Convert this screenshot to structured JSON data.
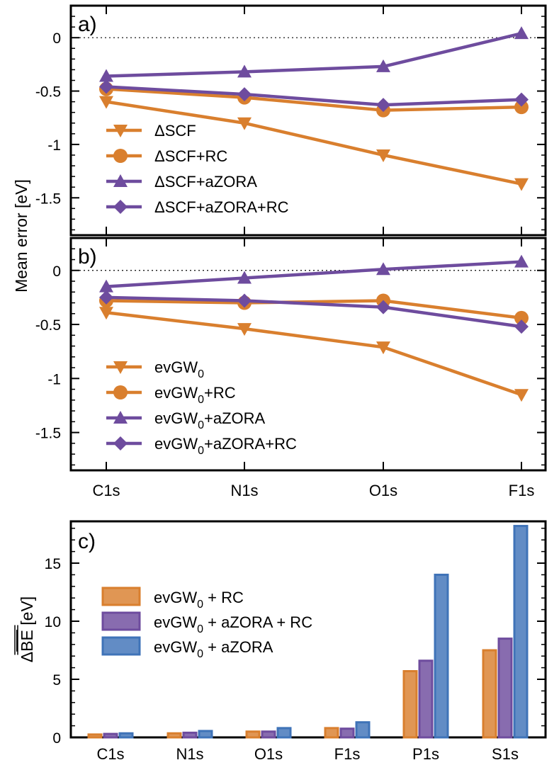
{
  "colors": {
    "orange": "#D97F2E",
    "purple": "#6E4C9E",
    "blue": "#3F73B8",
    "axis": "#000000",
    "zero_line": "#000000"
  },
  "shared_ylabel": "Mean error [eV]",
  "chart_data": [
    {
      "id": "a",
      "type": "line",
      "panel_label": "a)",
      "categories": [
        "C1s",
        "N1s",
        "O1s",
        "F1s"
      ],
      "show_category_labels": false,
      "ylim": [
        -1.85,
        0.3
      ],
      "yticks": [
        0,
        -0.5,
        -1,
        -1.5
      ],
      "ytick_labels": [
        "0",
        "-0.5",
        "-1",
        "-1.5"
      ],
      "zero_line": "dotted",
      "grid": false,
      "legend_position": "bottom-left",
      "series": [
        {
          "name": "ΔSCF",
          "marker": "triangle-down",
          "color": "orange",
          "values": [
            -0.6,
            -0.8,
            -1.1,
            -1.37
          ]
        },
        {
          "name": "ΔSCF+RC",
          "marker": "circle",
          "color": "orange",
          "values": [
            -0.48,
            -0.56,
            -0.68,
            -0.65
          ]
        },
        {
          "name": "ΔSCF+aZORA",
          "marker": "triangle-up",
          "color": "purple",
          "values": [
            -0.36,
            -0.32,
            -0.27,
            0.04
          ]
        },
        {
          "name": "ΔSCF+aZORA+RC",
          "marker": "diamond",
          "color": "purple",
          "values": [
            -0.46,
            -0.53,
            -0.63,
            -0.58
          ]
        }
      ]
    },
    {
      "id": "b",
      "type": "line",
      "panel_label": "b)",
      "categories": [
        "C1s",
        "N1s",
        "O1s",
        "F1s"
      ],
      "show_category_labels": true,
      "ylim": [
        -1.85,
        0.3
      ],
      "yticks": [
        0,
        -0.5,
        -1,
        -1.5
      ],
      "ytick_labels": [
        "0",
        "-0.5",
        "-1",
        "-1.5"
      ],
      "zero_line": "dotted",
      "grid": false,
      "legend_position": "bottom-left",
      "series": [
        {
          "name": "evGW0",
          "legend_base": "evGW",
          "legend_sub": "0",
          "legend_suffix": "",
          "marker": "triangle-down",
          "color": "orange",
          "values": [
            -0.39,
            -0.54,
            -0.71,
            -1.15
          ]
        },
        {
          "name": "evGW0+RC",
          "legend_base": "evGW",
          "legend_sub": "0",
          "legend_suffix": "+RC",
          "marker": "circle",
          "color": "orange",
          "values": [
            -0.28,
            -0.3,
            -0.28,
            -0.44
          ]
        },
        {
          "name": "evGW0+aZORA",
          "legend_base": "evGW",
          "legend_sub": "0",
          "legend_suffix": "+aZORA",
          "marker": "triangle-up",
          "color": "purple",
          "values": [
            -0.15,
            -0.07,
            0.01,
            0.08
          ]
        },
        {
          "name": "evGW0+aZORA+RC",
          "legend_base": "evGW",
          "legend_sub": "0",
          "legend_suffix": "+aZORA+RC",
          "marker": "diamond",
          "color": "purple",
          "values": [
            -0.25,
            -0.28,
            -0.34,
            -0.52
          ]
        }
      ]
    },
    {
      "id": "c",
      "type": "bar",
      "panel_label": "c)",
      "categories": [
        "C1s",
        "N1s",
        "O1s",
        "F1s",
        "P1s",
        "S1s"
      ],
      "ylabel": "ΔBE [eV]",
      "ylim": [
        0,
        18.6
      ],
      "yticks": [
        0,
        5,
        10,
        15
      ],
      "ytick_labels": [
        "0",
        "5",
        "10",
        "15"
      ],
      "grid": false,
      "legend_position": "top-left",
      "series": [
        {
          "name": "evGW0 + RC",
          "legend_base": "evGW",
          "legend_sub": "0",
          "legend_suffix": " + RC",
          "color": "orange",
          "values": [
            0.25,
            0.35,
            0.5,
            0.8,
            5.7,
            7.5
          ]
        },
        {
          "name": "evGW0 + aZORA + RC",
          "legend_base": "evGW",
          "legend_sub": "0",
          "legend_suffix": " + aZORA + RC",
          "color": "purple",
          "values": [
            0.3,
            0.4,
            0.5,
            0.75,
            6.6,
            8.5
          ]
        },
        {
          "name": "evGW0 + aZORA",
          "legend_base": "evGW",
          "legend_sub": "0",
          "legend_suffix": " + aZORA",
          "color": "blue",
          "values": [
            0.35,
            0.55,
            0.8,
            1.3,
            14.0,
            18.2
          ]
        }
      ]
    }
  ]
}
